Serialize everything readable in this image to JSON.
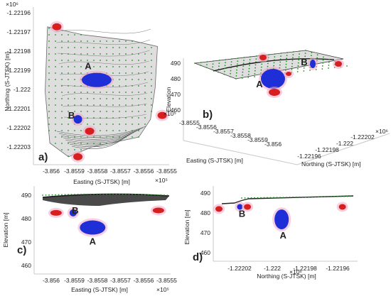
{
  "chart_data": [
    {
      "panel": "a)",
      "type": "scatter",
      "view": "plan",
      "xlabel": "Easting (S-JTSK) [m]",
      "ylabel": "Northing (S-JTSK) [m]",
      "x_exponent": "×10⁵",
      "y_exponent": "×10⁶",
      "xticks": [
        "-3.856",
        "-3.8559",
        "-3.8558",
        "-3.8557",
        "-3.8556",
        "-3.8555"
      ],
      "yticks": [
        "-1.22196",
        "-1.22197",
        "-1.22198",
        "-1.22199",
        "-1.222",
        "-1.22201",
        "-1.22202",
        "-1.22203"
      ],
      "xlim": [
        -385605,
        -385547
      ],
      "ylim": [
        -1222035,
        -1221955
      ],
      "surface_outline": [
        [
          -385599,
          -1221965
        ],
        [
          -385584,
          -1221969
        ],
        [
          -385563,
          -1221972
        ],
        [
          -385552,
          -1221975
        ],
        [
          -385553,
          -1221996
        ],
        [
          -385555,
          -1222012
        ],
        [
          -385560,
          -1222021
        ],
        [
          -385580,
          -1222026
        ],
        [
          -385590,
          -1222031
        ],
        [
          -385598,
          -1222024
        ],
        [
          -385600,
          -1221998
        ]
      ],
      "anomalies": [
        {
          "label": "A",
          "color": "blue",
          "x": -385578,
          "y": -1221992
        },
        {
          "label": "B",
          "color": "blue",
          "x": -385586,
          "y": -1222012
        },
        {
          "color": "red",
          "x": -385595,
          "y": -1221965
        },
        {
          "color": "red",
          "x": -385550,
          "y": -1222010
        },
        {
          "color": "red",
          "x": -385586,
          "y": -1222031
        },
        {
          "color": "red",
          "x": -385581,
          "y": -1222018
        }
      ]
    },
    {
      "panel": "b)",
      "type": "scatter",
      "view": "3d",
      "xlabel": "Easting (S-JTSK) [m]",
      "ylabel": "Northing (S-JTSK) [m]",
      "zlabel": "Elevation",
      "x_exponent": "×10⁵",
      "y_exponent": "×10⁶",
      "xticks": [
        "-3.8555",
        "-3.8556",
        "-3.8557",
        "-3.8558",
        "-3.8559",
        "-3.856"
      ],
      "yticks": [
        "-1.22202",
        "-1.222",
        "-1.22198",
        "-1.22196"
      ],
      "zticks": [
        "490",
        "480",
        "470",
        "460"
      ],
      "zlim": [
        455,
        495
      ],
      "anomalies": [
        {
          "label": "A",
          "color": "blue"
        },
        {
          "label": "B",
          "color": "blue"
        },
        {
          "color": "red"
        }
      ]
    },
    {
      "panel": "c)",
      "type": "scatter",
      "view": "section-easting",
      "xlabel": "Easting (S-JTSK) [m]",
      "ylabel": "Elevation [m]",
      "x_exponent": "×10⁵",
      "xticks": [
        "-3.856",
        "-3.8559",
        "-3.8558",
        "-3.8557",
        "-3.8556",
        "-3.8555"
      ],
      "yticks": [
        "490",
        "480",
        "470",
        "460"
      ],
      "xlim": [
        -385604,
        -385548
      ],
      "ylim": [
        456,
        492
      ],
      "anomalies": [
        {
          "label": "A",
          "color": "blue",
          "x": -385580,
          "z": 475
        },
        {
          "label": "B",
          "color": "blue",
          "x": -385588,
          "z": 481
        },
        {
          "color": "red",
          "x": -385595,
          "z": 481
        },
        {
          "color": "red",
          "x": -385553,
          "z": 482
        }
      ]
    },
    {
      "panel": "d)",
      "type": "scatter",
      "view": "section-northing",
      "xlabel": "Northing (S-JTSK) [m]",
      "ylabel": "Elevation [m]",
      "x_exponent": "×10⁶",
      "xticks": [
        "-1.22202",
        "-1.222",
        "-1.22198",
        "-1.22196"
      ],
      "yticks": [
        "490",
        "480",
        "470",
        "460"
      ],
      "xlim": [
        -1222034,
        -1221958
      ],
      "ylim": [
        456,
        492
      ],
      "anomalies": [
        {
          "label": "A",
          "color": "blue",
          "x": -1221998,
          "z": 476
        },
        {
          "label": "B",
          "color": "blue",
          "x": -1222020,
          "z": 482
        },
        {
          "color": "red",
          "x": -1222031,
          "z": 481
        },
        {
          "color": "red",
          "x": -1222016,
          "z": 482
        },
        {
          "color": "red",
          "x": -1221966,
          "z": 482
        }
      ]
    }
  ],
  "colors": {
    "surface_fill": "#dedede",
    "surface_edge": "#6a6a6a",
    "grid_points": "#1f8f1f",
    "anomaly_blue": "#1f2fd8",
    "anomaly_red": "#d81f1f",
    "halo": "#f3a6c8"
  }
}
